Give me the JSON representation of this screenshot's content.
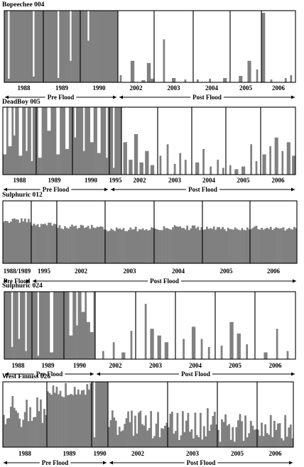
{
  "chart_data": [
    {
      "type": "bar",
      "title": "Bopeechee 004",
      "populations": [
        {
          "label": "1988",
          "base": 1.0,
          "dips": [
            [
              0.12,
              0.05
            ],
            [
              0.75,
              0.08
            ]
          ]
        },
        {
          "label": "1989",
          "base": 1.0,
          "dips": [
            [
              0.74,
              0.3
            ],
            [
              0.4,
              0.06
            ]
          ]
        },
        {
          "label": "1990",
          "base": 1.0,
          "dips": [
            [
              0.22,
              0.58
            ]
          ]
        },
        {
          "label": "2002",
          "base": 0.0,
          "spikes": [
            [
              0.4,
              0.3
            ],
            [
              0.86,
              0.27
            ],
            [
              0.08,
              0.1
            ],
            [
              0.96,
              0.05
            ],
            [
              0.7,
              0.03
            ]
          ]
        },
        {
          "label": "2003",
          "base": 0.0,
          "spikes": [
            [
              0.24,
              0.6
            ],
            [
              0.5,
              0.06
            ],
            [
              0.8,
              0.04
            ]
          ]
        },
        {
          "label": "2004",
          "base": 0.0,
          "spikes": [
            [
              0.12,
              0.04
            ],
            [
              0.45,
              0.05
            ],
            [
              0.85,
              0.06
            ]
          ]
        },
        {
          "label": "2005",
          "base": 0.0,
          "spikes": [
            [
              0.62,
              0.3
            ],
            [
              0.34,
              0.09
            ],
            [
              0.86,
              0.18
            ]
          ]
        },
        {
          "label": "2006",
          "base": 0.0,
          "spikes": [
            [
              0.05,
              0.97
            ],
            [
              0.88,
              0.1
            ],
            [
              0.3,
              0.04
            ],
            [
              0.7,
              0.06
            ]
          ]
        }
      ],
      "periods": [
        {
          "label": "Pre Flood",
          "span": [
            0,
            2
          ]
        },
        {
          "label": "Post Flood",
          "span": [
            3,
            7
          ]
        }
      ]
    },
    {
      "type": "bar",
      "title": "DeadBoy 005",
      "populations": [
        {
          "label": "1988",
          "base": 1.0,
          "dips": [
            [
              0.05,
              0.3
            ],
            [
              0.22,
              0.42
            ],
            [
              0.33,
              0.58
            ],
            [
              0.52,
              0.28
            ],
            [
              0.7,
              0.35
            ],
            [
              0.88,
              0.2
            ]
          ]
        },
        {
          "label": "1989",
          "base": 1.0,
          "dips": [
            [
              0.1,
              0.25
            ],
            [
              0.35,
              0.65
            ],
            [
              0.6,
              0.3
            ],
            [
              0.85,
              0.38
            ]
          ]
        },
        {
          "label": "1990",
          "base": 1.0,
          "dips": [
            [
              0.08,
              0.55
            ],
            [
              0.3,
              0.35
            ],
            [
              0.52,
              0.48
            ],
            [
              0.72,
              0.32
            ],
            [
              0.92,
              0.25
            ]
          ]
        },
        {
          "label": "1995",
          "base": 1.0,
          "dips": [
            [
              0.4,
              0.1
            ]
          ]
        },
        {
          "label": "2002",
          "base": 0.0,
          "spikes": [
            [
              0.1,
              0.48
            ],
            [
              0.25,
              0.22
            ],
            [
              0.4,
              0.6
            ],
            [
              0.55,
              0.18
            ],
            [
              0.7,
              0.35
            ],
            [
              0.85,
              0.14
            ]
          ]
        },
        {
          "label": "2003",
          "base": 0.0,
          "spikes": [
            [
              0.08,
              0.28
            ],
            [
              0.3,
              0.45
            ],
            [
              0.5,
              0.16
            ],
            [
              0.65,
              0.32
            ],
            [
              0.82,
              0.22
            ]
          ]
        },
        {
          "label": "2004",
          "base": 0.0,
          "spikes": [
            [
              0.15,
              0.18
            ],
            [
              0.35,
              0.38
            ],
            [
              0.55,
              0.12
            ],
            [
              0.76,
              0.22
            ],
            [
              0.92,
              0.1
            ]
          ]
        },
        {
          "label": "2005",
          "base": 0.0,
          "spikes": [
            [
              0.12,
              0.14
            ],
            [
              0.3,
              0.08
            ],
            [
              0.5,
              0.12
            ],
            [
              0.72,
              0.45
            ],
            [
              0.88,
              0.2
            ]
          ]
        },
        {
          "label": "2006",
          "base": 0.0,
          "spikes": [
            [
              0.1,
              0.3
            ],
            [
              0.28,
              0.42
            ],
            [
              0.46,
              0.55
            ],
            [
              0.62,
              0.35
            ],
            [
              0.8,
              0.48
            ],
            [
              0.95,
              0.28
            ]
          ]
        }
      ],
      "periods": [
        {
          "label": "Pre Flood",
          "span": [
            0,
            2
          ]
        },
        {
          "label": "Post Flood",
          "span": [
            3,
            8
          ]
        }
      ]
    },
    {
      "type": "bar",
      "title": "Sulphuric 012",
      "populations": [
        {
          "label": "1988/1989",
          "base": 0.68,
          "noise": 0.04
        },
        {
          "label": "1995",
          "base": 0.62,
          "noise": 0.04
        },
        {
          "label": "2002",
          "base": 0.58,
          "noise": 0.04
        },
        {
          "label": "2003",
          "base": 0.55,
          "noise": 0.04
        },
        {
          "label": "2004",
          "base": 0.57,
          "noise": 0.04
        },
        {
          "label": "2005",
          "base": 0.55,
          "noise": 0.04
        },
        {
          "label": "2006",
          "base": 0.56,
          "noise": 0.04
        }
      ],
      "periods": [
        {
          "label": "Pre Flood",
          "span": [
            0,
            0
          ]
        },
        {
          "label": "Post Flood",
          "span": [
            1,
            6
          ]
        }
      ]
    },
    {
      "type": "bar",
      "title": "Sulphuric 024",
      "populations": [
        {
          "label": "1988",
          "base": 1.0,
          "dips": [
            [
              0.3,
              0.18
            ],
            [
              0.55,
              0.3
            ],
            [
              0.8,
              0.12
            ]
          ]
        },
        {
          "label": "1989",
          "base": 1.0,
          "dips": [
            [
              0.2,
              0.05
            ],
            [
              0.6,
              0.1
            ]
          ]
        },
        {
          "label": "1990",
          "base": 1.0,
          "dips": [
            [
              0.22,
              0.35
            ],
            [
              0.42,
              0.5
            ],
            [
              0.62,
              0.7
            ],
            [
              0.78,
              0.55
            ],
            [
              0.9,
              0.4
            ]
          ]
        },
        {
          "label": "2002",
          "base": 0.0,
          "spikes": [
            [
              0.2,
              0.12
            ],
            [
              0.45,
              0.25
            ],
            [
              0.7,
              0.1
            ],
            [
              0.9,
              0.42
            ]
          ]
        },
        {
          "label": "2003",
          "base": 0.0,
          "spikes": [
            [
              0.25,
              0.82
            ],
            [
              0.4,
              0.45
            ],
            [
              0.58,
              0.35
            ],
            [
              0.78,
              0.25
            ]
          ]
        },
        {
          "label": "2004",
          "base": 0.0,
          "spikes": [
            [
              0.2,
              0.3
            ],
            [
              0.45,
              0.48
            ],
            [
              0.65,
              0.3
            ],
            [
              0.85,
              0.18
            ]
          ]
        },
        {
          "label": "2005",
          "base": 0.0,
          "spikes": [
            [
              0.15,
              0.2
            ],
            [
              0.4,
              0.55
            ],
            [
              0.6,
              0.38
            ],
            [
              0.8,
              0.22
            ]
          ]
        },
        {
          "label": "2006",
          "base": 0.0,
          "spikes": [
            [
              0.25,
              0.1
            ],
            [
              0.55,
              0.45
            ],
            [
              0.8,
              0.12
            ]
          ]
        }
      ],
      "periods": [
        {
          "label": "Pre Flood",
          "span": [
            0,
            2
          ]
        },
        {
          "label": "Post Flood",
          "span": [
            3,
            7
          ]
        }
      ]
    },
    {
      "type": "bar",
      "title": "West Finniss 026",
      "populations": [
        {
          "label": "1988",
          "base": 0.55,
          "noise": 0.25
        },
        {
          "label": "1989",
          "base": 0.88,
          "noise": 0.12
        },
        {
          "label": "1990",
          "base": 1.0,
          "dips": [
            [
              0.2,
              0.15
            ]
          ]
        },
        {
          "label": "2002",
          "base": 0.35,
          "noise": 0.22
        },
        {
          "label": "2003",
          "base": 0.35,
          "noise": 0.25
        },
        {
          "label": "2005",
          "base": 0.3,
          "noise": 0.22
        },
        {
          "label": "2006",
          "base": 0.3,
          "noise": 0.2
        }
      ],
      "periods": [
        {
          "label": "Pre Flood",
          "span": [
            0,
            2
          ]
        },
        {
          "label": "Post Flood",
          "span": [
            3,
            6
          ]
        }
      ]
    }
  ],
  "colors": {
    "fill": "#808080",
    "frame": "#000000",
    "background": "#ffffff"
  }
}
